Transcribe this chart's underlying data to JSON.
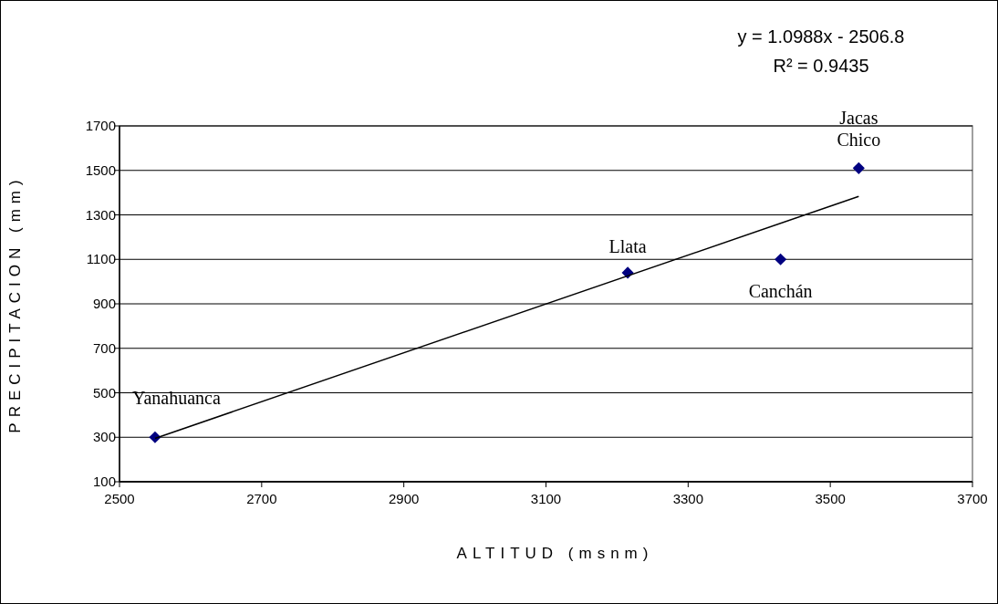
{
  "chart_data": {
    "type": "scatter",
    "xlabel": "ALTITUD (msnm)",
    "ylabel": "PRECIPITACION (mm)",
    "xlim": [
      2500,
      3700
    ],
    "xticks": [
      2500,
      2700,
      2900,
      3100,
      3300,
      3500,
      3700
    ],
    "ylim": [
      100,
      1700
    ],
    "yticks": [
      100,
      300,
      500,
      700,
      900,
      1100,
      1300,
      1500,
      1700
    ],
    "grid": "y",
    "marker": "diamond",
    "series": [
      {
        "color": "#000080",
        "x": [
          2550,
          3215,
          3430,
          3540
        ],
        "values": [
          300,
          1040,
          1100,
          1510
        ]
      },
      {
        "type": "line",
        "color": "#000000",
        "marker": "none",
        "x": [
          2550,
          3540
        ],
        "values": [
          295,
          1383
        ]
      }
    ],
    "annotations": [
      "y = 1.0988x - 2506.8",
      "R² = 0.9435",
      {
        "text": "Yanahuanca",
        "x": 2550,
        "y": 300
      },
      {
        "text": "Llata",
        "x": 3215,
        "y": 1040
      },
      {
        "text": "Canchán",
        "x": 3430,
        "y": 1100
      },
      {
        "text": "Jacas Chico",
        "x": 3540,
        "y": 1510
      }
    ]
  }
}
